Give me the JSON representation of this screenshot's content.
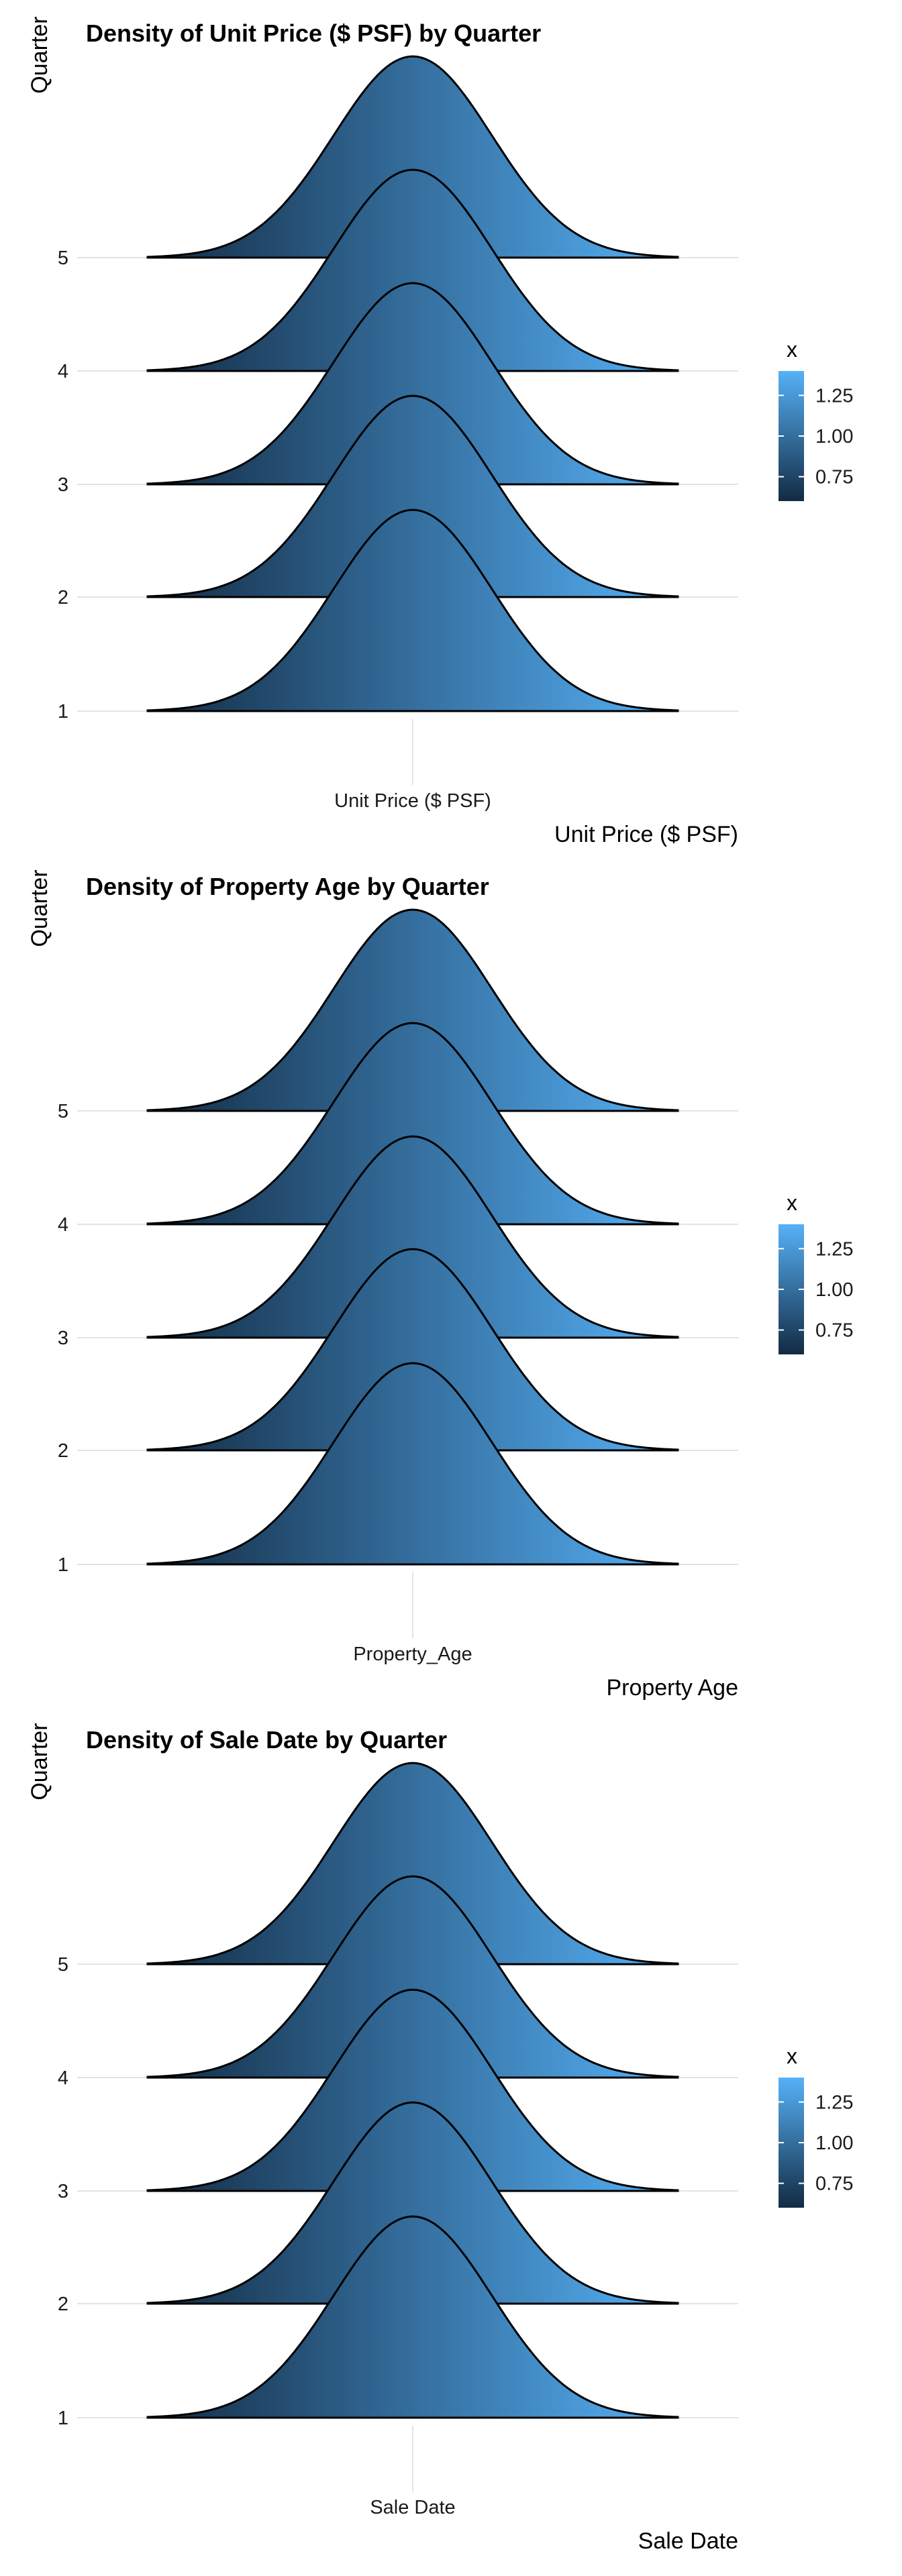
{
  "colors": {
    "low": "#132B43",
    "high": "#56B1F7",
    "outline": "#000000",
    "grid": "#e3e3e3"
  },
  "chart_data": [
    {
      "type": "ridgeline",
      "title": "Density of Unit Price ($ PSF) by Quarter",
      "xlabel": "Unit Price ($ PSF)",
      "x_tick_label": "Unit Price ($ PSF)",
      "ylabel": "Quarter",
      "categories": [
        "1",
        "2",
        "3",
        "4",
        "5"
      ],
      "legend": {
        "title": "x",
        "ticks": [
          "0.75",
          "1.00",
          "1.25"
        ],
        "range": [
          0.6,
          1.4
        ],
        "position": "right"
      },
      "grid": false
    },
    {
      "type": "ridgeline",
      "title": "Density of Property Age by Quarter",
      "xlabel": "Property Age",
      "x_tick_label": "Property_Age",
      "ylabel": "Quarter",
      "categories": [
        "1",
        "2",
        "3",
        "4",
        "5"
      ],
      "legend": {
        "title": "x",
        "ticks": [
          "0.75",
          "1.00",
          "1.25"
        ],
        "range": [
          0.6,
          1.4
        ],
        "position": "right"
      },
      "grid": false
    },
    {
      "type": "ridgeline",
      "title": "Density of Sale Date by Quarter",
      "xlabel": "Sale Date",
      "x_tick_label": "Sale Date",
      "ylabel": "Quarter",
      "categories": [
        "1",
        "2",
        "3",
        "4",
        "5"
      ],
      "legend": {
        "title": "x",
        "ticks": [
          "0.75",
          "1.00",
          "1.25"
        ],
        "range": [
          0.6,
          1.4
        ],
        "position": "right"
      },
      "grid": false
    }
  ]
}
